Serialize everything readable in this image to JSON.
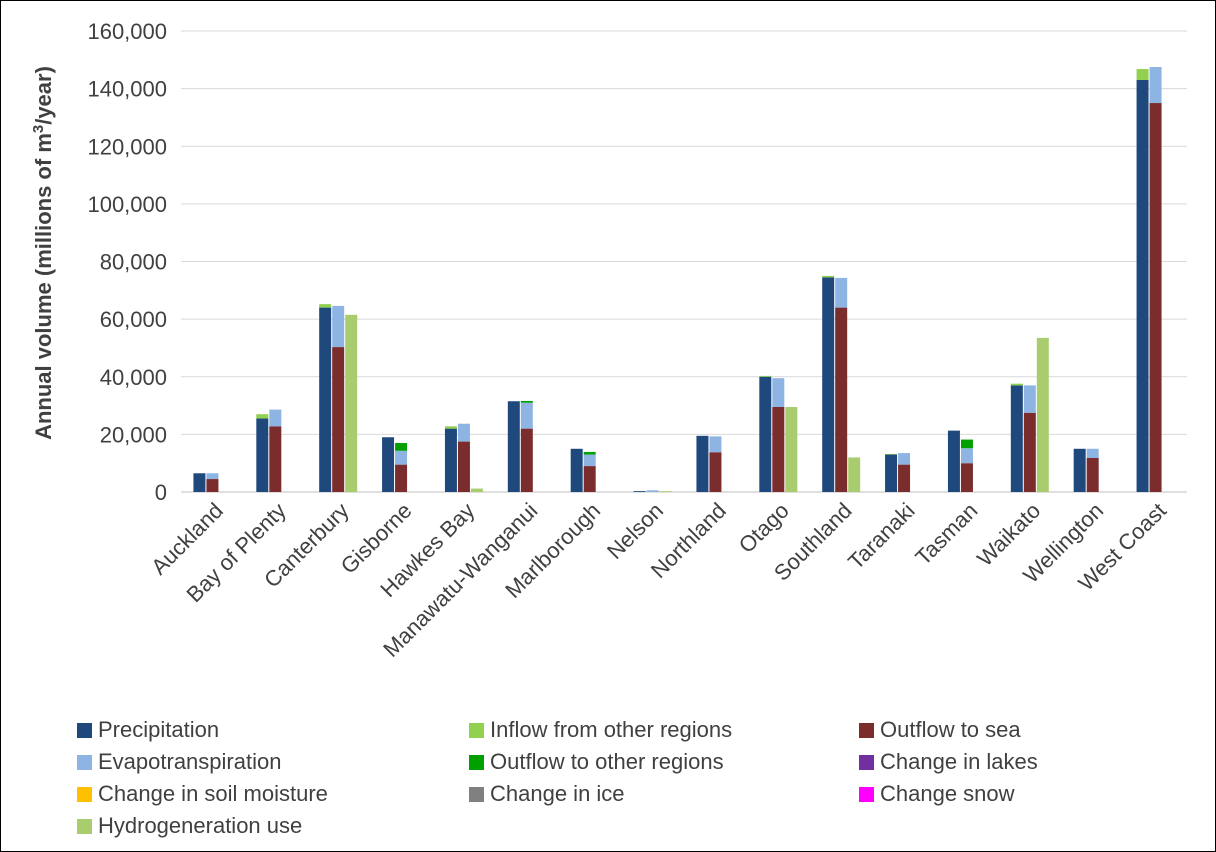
{
  "chart_data": {
    "type": "bar",
    "stacking": "stacked groups (3 stacks per region)",
    "ylabel_parts": [
      "Annual volume (millions of m",
      "3",
      "/year)"
    ],
    "ylim": [
      0,
      160000
    ],
    "y_ticks": [
      "0",
      "20,000",
      "40,000",
      "60,000",
      "80,000",
      "100,000",
      "120,000",
      "140,000",
      "160,000"
    ],
    "grid": true,
    "legend_position": "bottom",
    "categories": [
      "Auckland",
      "Bay of Plenty",
      "Canterbury",
      "Gisborne",
      "Hawkes Bay",
      "Manawatu-Wanganui",
      "Marlborough",
      "Nelson",
      "Northland",
      "Otago",
      "Southland",
      "Taranaki",
      "Tasman",
      "Waikato",
      "Wellington",
      "West Coast"
    ],
    "legend": [
      {
        "name": "Precipitation",
        "color": "#1f497d"
      },
      {
        "name": "Inflow from other regions",
        "color": "#92d050"
      },
      {
        "name": "Outflow to sea",
        "color": "#7b2c2c"
      },
      {
        "name": "Evapotranspiration",
        "color": "#8db4e2"
      },
      {
        "name": "Outflow to other regions",
        "color": "#00a000"
      },
      {
        "name": "Change in lakes",
        "color": "#7030a0"
      },
      {
        "name": "Change in soil moisture",
        "color": "#ffc000"
      },
      {
        "name": "Change in ice",
        "color": "#808080"
      },
      {
        "name": "Change snow",
        "color": "#ff00ff"
      },
      {
        "name": "Hydrogeneration use",
        "color": "#a9cc6e"
      }
    ],
    "stacks": [
      {
        "stack": "inflows",
        "series": [
          {
            "name": "Precipitation",
            "values": [
              6500,
              25500,
              64000,
              19000,
              22000,
              31500,
              15000,
              300,
              19500,
              40000,
              74500,
              13000,
              21300,
              37000,
              15000,
              143000
            ]
          },
          {
            "name": "Inflow from other regions",
            "values": [
              0,
              1500,
              1200,
              0,
              800,
              0,
              0,
              0,
              0,
              300,
              500,
              200,
              0,
              600,
              0,
              3800
            ]
          }
        ]
      },
      {
        "stack": "outflows",
        "series": [
          {
            "name": "Outflow to sea",
            "values": [
              4500,
              22800,
              50300,
              9500,
              17500,
              22000,
              9000,
              0,
              13800,
              29500,
              64000,
              9500,
              10000,
              27500,
              11800,
              135000
            ]
          },
          {
            "name": "Evapotranspiration",
            "values": [
              2000,
              5800,
              14300,
              4800,
              6200,
              9000,
              4000,
              600,
              5500,
              10000,
              10300,
              4000,
              5200,
              9500,
              3200,
              12500
            ]
          },
          {
            "name": "Outflow to other regions",
            "values": [
              0,
              0,
              0,
              2700,
              0,
              600,
              900,
              0,
              0,
              0,
              0,
              0,
              3000,
              0,
              0,
              0
            ]
          }
        ]
      },
      {
        "stack": "hydro",
        "series": [
          {
            "name": "Hydrogeneration use",
            "values": [
              0,
              0,
              61500,
              0,
              1200,
              0,
              0,
              300,
              0,
              29500,
              12000,
              0,
              0,
              53500,
              0,
              0
            ]
          }
        ]
      }
    ]
  }
}
